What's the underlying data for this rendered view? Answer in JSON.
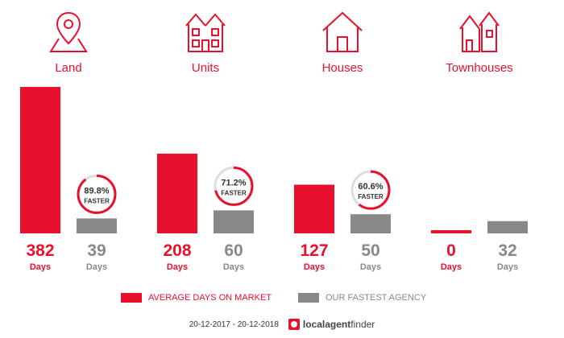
{
  "categories": [
    {
      "label": "Land",
      "icon": "location-pin-map-icon"
    },
    {
      "label": "Units",
      "icon": "apartment-building-icon"
    },
    {
      "label": "Houses",
      "icon": "house-icon"
    },
    {
      "label": "Townhouses",
      "icon": "townhouses-icon"
    }
  ],
  "legend": {
    "market": "AVERAGE DAYS ON MARKET",
    "agency": "OUR FASTEST AGENCY"
  },
  "footer": {
    "date_range": "20-12-2017 - 20-12-2018",
    "brand_part1": "localagent",
    "brand_part2": "finder"
  },
  "colors": {
    "market": "#e8112d",
    "agency": "#888888"
  },
  "chart_data": {
    "type": "bar",
    "categories": [
      "Land",
      "Units",
      "Houses",
      "Townhouses"
    ],
    "series": [
      {
        "name": "AVERAGE DAYS ON MARKET",
        "values": [
          382,
          208,
          127,
          0
        ]
      },
      {
        "name": "OUR FASTEST AGENCY",
        "values": [
          39,
          60,
          50,
          32
        ]
      }
    ],
    "value_unit_label": "Days",
    "faster_badges": [
      {
        "category": "Land",
        "percent": 89.8,
        "text": "89.8%",
        "label": "FASTER"
      },
      {
        "category": "Units",
        "percent": 71.2,
        "text": "71.2%",
        "label": "FASTER"
      },
      {
        "category": "Houses",
        "percent": 60.6,
        "text": "60.6%",
        "label": "FASTER"
      }
    ]
  }
}
